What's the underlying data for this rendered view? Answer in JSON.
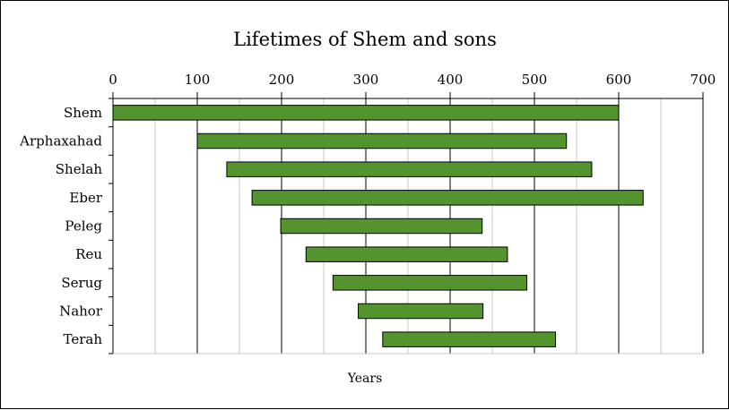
{
  "chart_data": {
    "type": "bar",
    "orientation": "horizontal-range",
    "title": "Lifetimes of Shem and sons",
    "xlabel": "Years",
    "ylabel": "",
    "xlim": [
      0,
      700
    ],
    "x_ticks": [
      0,
      100,
      200,
      300,
      400,
      500,
      600,
      700
    ],
    "x_tick_labels": [
      "0",
      "100",
      "200",
      "300",
      "400",
      "500",
      "600",
      "700"
    ],
    "x_axis_position": "top",
    "grid": "vertical major and minor",
    "categories": [
      "Shem",
      "Arphaxahad",
      "Shelah",
      "Eber",
      "Peleg",
      "Reu",
      "Serug",
      "Nahor",
      "Terah"
    ],
    "series": [
      {
        "start": [
          0,
          100,
          135,
          165,
          199,
          229,
          261,
          291,
          320
        ],
        "end": [
          600,
          538,
          568,
          629,
          438,
          468,
          491,
          439,
          525
        ]
      }
    ],
    "bar_color": "#55932f",
    "bar_border_color": "#000000"
  }
}
